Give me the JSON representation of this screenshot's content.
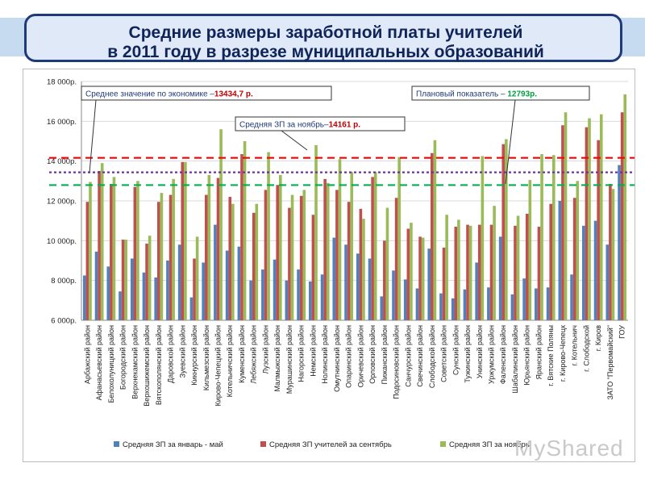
{
  "page": {
    "title_line1": "Средние размеры заработной платы учителей",
    "title_line2": "в 2011 году  в разрезе муниципальных образований",
    "watermark": "MyShared"
  },
  "colors": {
    "series_jan_may": "#4f81bd",
    "series_sep": "#c0504d",
    "series_nov": "#9bbb59",
    "avg_economy_line": "#7030a0",
    "nov_avg_line": "#ff0000",
    "plan_line": "#00b050",
    "title_border": "#1f3a78",
    "title_text": "#10245a"
  },
  "annotations": {
    "economy": {
      "label": "Среднее значение по экономике –",
      "value": "13434,7 р."
    },
    "plan": {
      "label": "Плановый показатель – ",
      "value": "12793р."
    },
    "november": {
      "label": "Средняя ЗП за ноябрь–",
      "value": "14161 р."
    }
  },
  "chart_data": {
    "type": "bar",
    "ylim": [
      6000,
      18000
    ],
    "yticks": [
      "6 000р.",
      "8 000р.",
      "10 000р.",
      "12 000р.",
      "14 000р.",
      "16 000р.",
      "18 000р."
    ],
    "categories": [
      "Арбажский  район",
      "Афанасьевский  район",
      "Белохолуницкий  район",
      "Богородский  район",
      "Верхнекамский  район",
      "Верхошижемский  район",
      "Вятскополянский  район",
      "Даровской  район",
      "Зуевский  район",
      "Кикнурский  район",
      "Кильмезский  район",
      "Кирово-Чепецкий  район",
      "Котельничский  район",
      "Куменский  район",
      "Лебяжский  район",
      "Лузский  район",
      "Малмыжский  район",
      "Мурашинский  район",
      "Нагорский  район",
      "Немский  район",
      "Нолинский  район",
      "Омутнинский  район",
      "Опаринский  район",
      "Оричевский  район",
      "Орловский  район",
      "Пижанский  район",
      "Подосиновский  район",
      "Санчурский  район",
      "Свечинский  район",
      "Слободской  район",
      "Советский  район",
      "Сунский  район",
      "Тужинский  район",
      "Унинский  район",
      "Уржумский  район",
      "Фаленский  район",
      "Шабалинский  район",
      "Юрьянский  район",
      "Яранский  район",
      "г. Вятские Поляны",
      "г. Кирово-Чепецк",
      "г. Котельнич",
      "г. Слободской",
      "г. Киров",
      "ЗАТО \"Первомайский\"",
      "ГОУ"
    ],
    "series": [
      {
        "name": "Средняя ЗП за январь - май",
        "values": [
          8250,
          9450,
          8700,
          7450,
          9100,
          8400,
          8150,
          9000,
          9800,
          7150,
          8900,
          10800,
          9500,
          9700,
          8000,
          8550,
          9050,
          8000,
          8550,
          7950,
          8300,
          10150,
          9800,
          9350,
          9100,
          7200,
          8500,
          8050,
          7600,
          9600,
          7350,
          7100,
          7550,
          8900,
          7650,
          10200,
          7300,
          8100,
          7600,
          7650,
          12000,
          8300,
          10750,
          11000,
          9800,
          13800
        ]
      },
      {
        "name": "Средняя ЗП учителей за сентябрь",
        "values": [
          11950,
          13500,
          12850,
          10050,
          12700,
          9850,
          11950,
          12300,
          13950,
          9100,
          12300,
          13150,
          12200,
          14350,
          11400,
          12550,
          12800,
          11650,
          12250,
          11300,
          13100,
          12550,
          11950,
          11600,
          13200,
          10000,
          12150,
          10600,
          10200,
          14400,
          9650,
          10700,
          10800,
          10800,
          10800,
          14850,
          10750,
          11350,
          10700,
          11850,
          15800,
          12150,
          15700,
          15050,
          12850,
          16450
        ]
      },
      {
        "name": "Средняя ЗП за ноябрь",
        "values": [
          12950,
          13900,
          13200,
          10050,
          13000,
          10250,
          12400,
          13100,
          13950,
          10200,
          13300,
          15600,
          11850,
          15000,
          11850,
          14450,
          13300,
          12300,
          12550,
          14800,
          12900,
          14100,
          13450,
          11100,
          13450,
          11650,
          14200,
          10900,
          10150,
          15050,
          11300,
          11050,
          10750,
          14250,
          11750,
          15100,
          11250,
          13050,
          14350,
          14300,
          16450,
          13000,
          16150,
          16350,
          12600,
          17350
        ]
      }
    ],
    "reference_lines": [
      {
        "name": "Средняя ЗП за ноябрь",
        "value": 14161
      },
      {
        "name": "Среднее значение по экономике",
        "value": 13434.7
      },
      {
        "name": "Плановый показатель",
        "value": 12793
      }
    ],
    "legend_position": "bottom",
    "grid": true
  }
}
